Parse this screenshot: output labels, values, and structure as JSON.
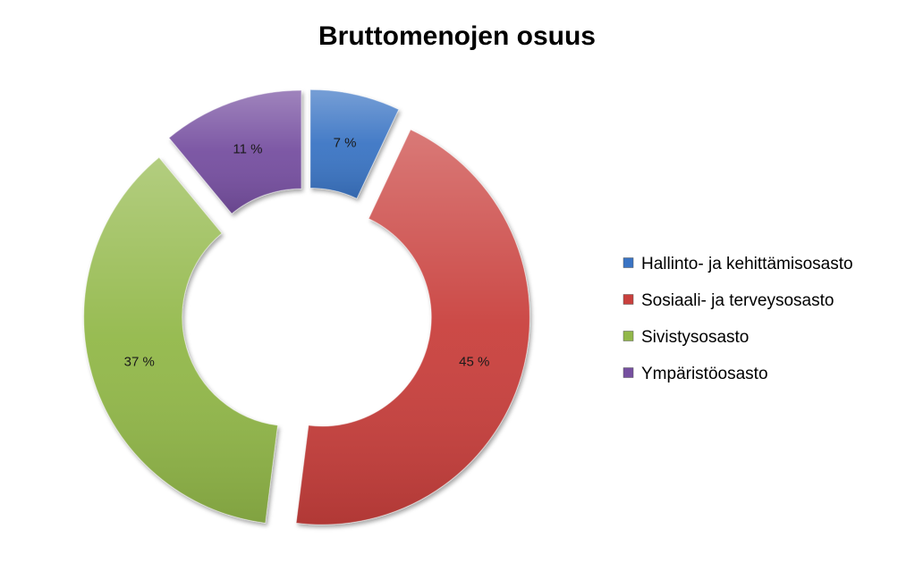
{
  "chart_data": {
    "type": "pie",
    "variant": "exploded doughnut",
    "title": "Bruttomenojen osuus",
    "categories": [
      "Hallinto- ja kehittämisosasto",
      "Sosiaali- ja terveysosasto",
      "Sivistysosasto",
      "Ympäristöosasto"
    ],
    "values": [
      7,
      45,
      37,
      11
    ],
    "data_labels": [
      "7 %",
      "45 %",
      "37 %",
      "11 %"
    ],
    "unit": "%",
    "colors": [
      "#3a74c4",
      "#c9403d",
      "#92b84a",
      "#7650a0"
    ],
    "legend_position": "right"
  }
}
